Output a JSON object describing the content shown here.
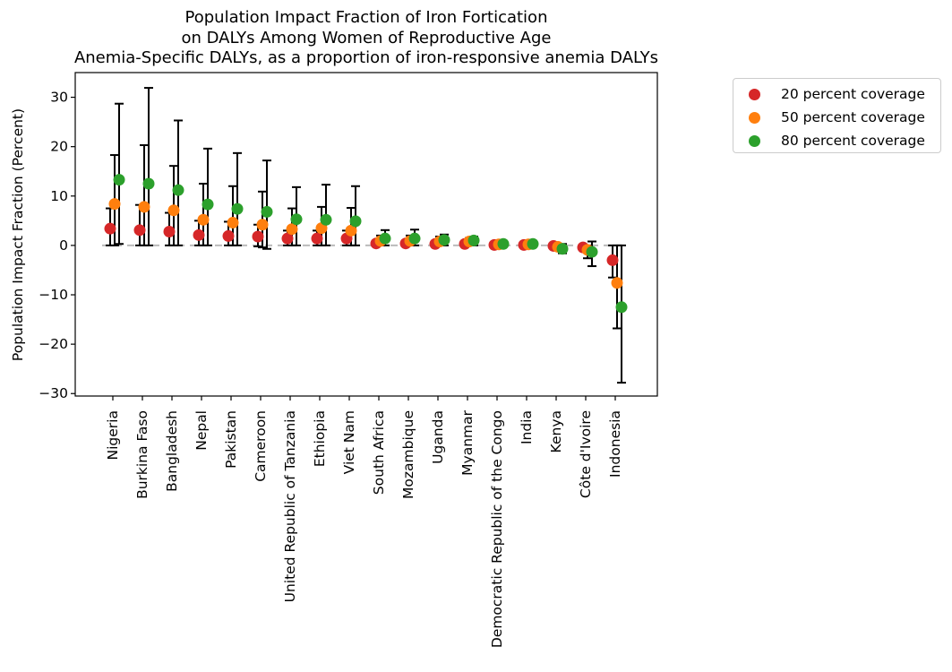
{
  "title_lines": [
    "Population Impact Fraction of Iron Fortication",
    "on DALYs Among Women of Reproductive Age",
    "Anemia-Specific DALYs, as a proportion of iron-responsive anemia DALYs"
  ],
  "chart_data": {
    "type": "scatter",
    "title": "Population Impact Fraction of Iron Fortication on DALYs Among Women of Reproductive Age Anemia-Specific DALYs, as a proportion of iron-responsive anemia DALYs",
    "xlabel": "",
    "ylabel": "Population Impact Fraction (Percent)",
    "ylim": [
      -30.5,
      35
    ],
    "yticks": [
      -30,
      -20,
      -10,
      0,
      10,
      20,
      30
    ],
    "ytick_labels": [
      "−30",
      "−20",
      "−10",
      "0",
      "10",
      "20",
      "30"
    ],
    "grid": false,
    "legend_position": "outside upper right",
    "categories": [
      "Nigeria",
      "Burkina Faso",
      "Bangladesh",
      "Nepal",
      "Pakistan",
      "Cameroon",
      "United Republic of Tanzania",
      "Ethiopia",
      "Viet Nam",
      "South Africa",
      "Mozambique",
      "Uganda",
      "Myanmar",
      "Democratic Republic of the Congo",
      "India",
      "Kenya",
      "Côte d'Ivoire",
      "Indonesia"
    ],
    "series": [
      {
        "name": "20 percent coverage",
        "color": "#d62728",
        "values": [
          3.4,
          3.1,
          2.8,
          2.1,
          1.9,
          1.8,
          1.4,
          1.4,
          1.4,
          0.4,
          0.4,
          0.3,
          0.3,
          0.1,
          0.1,
          -0.1,
          -0.4,
          -3.0
        ],
        "lower": [
          0.0,
          0.0,
          0.0,
          0.0,
          0.0,
          -0.2,
          0.0,
          0.0,
          0.0,
          0.0,
          0.0,
          0.0,
          0.0,
          0.0,
          0.0,
          -0.3,
          -0.7,
          -6.5
        ],
        "upper": [
          7.5,
          8.2,
          6.6,
          5.0,
          4.8,
          4.2,
          3.0,
          3.0,
          3.0,
          0.9,
          0.9,
          0.7,
          0.6,
          0.3,
          0.2,
          0.1,
          0.0,
          0.0
        ]
      },
      {
        "name": "50 percent coverage",
        "color": "#ff7f0e",
        "values": [
          8.4,
          7.8,
          7.1,
          5.2,
          4.6,
          4.2,
          3.3,
          3.5,
          3.0,
          0.9,
          0.9,
          0.8,
          0.8,
          0.2,
          0.2,
          -0.3,
          -0.9,
          -7.6
        ],
        "lower": [
          0.0,
          0.0,
          0.0,
          0.0,
          0.0,
          -0.4,
          0.0,
          0.0,
          0.0,
          0.0,
          0.0,
          0.0,
          0.0,
          0.0,
          0.0,
          -0.9,
          -2.6,
          -16.8
        ],
        "upper": [
          18.3,
          20.3,
          16.1,
          12.5,
          12.0,
          10.9,
          7.5,
          7.8,
          7.6,
          2.0,
          2.0,
          1.8,
          1.5,
          0.5,
          0.4,
          0.2,
          0.0,
          0.0
        ]
      },
      {
        "name": "80 percent coverage",
        "color": "#2ca02c",
        "values": [
          13.3,
          12.5,
          11.2,
          8.3,
          7.4,
          6.8,
          5.3,
          5.2,
          4.9,
          1.4,
          1.4,
          1.1,
          1.0,
          0.3,
          0.3,
          -0.7,
          -1.3,
          -12.5
        ],
        "lower": [
          0.3,
          0.0,
          0.0,
          0.0,
          0.0,
          -0.7,
          0.0,
          0.0,
          0.0,
          0.0,
          0.0,
          0.0,
          0.0,
          0.0,
          0.0,
          -1.6,
          -4.2,
          -27.8
        ],
        "upper": [
          28.7,
          31.9,
          25.3,
          19.6,
          18.7,
          17.2,
          11.8,
          12.3,
          12.0,
          3.1,
          3.2,
          2.2,
          1.8,
          0.7,
          0.6,
          0.3,
          0.8,
          0.0
        ]
      }
    ]
  }
}
